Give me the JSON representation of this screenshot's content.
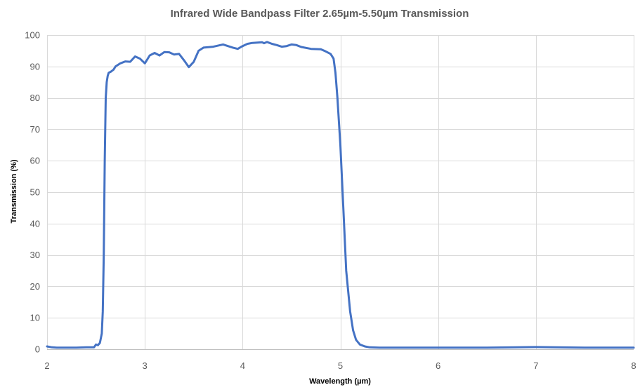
{
  "chart_data": {
    "type": "line",
    "title": "Infrared Wide Bandpass Filter 2.65µm-5.50µm Transmission",
    "xlabel": "Wavelength (µm)",
    "ylabel": "Transmission (%)",
    "xlim": [
      2,
      8
    ],
    "ylim": [
      0,
      100
    ],
    "xticks": [
      2,
      3,
      4,
      5,
      6,
      7,
      8
    ],
    "yticks": [
      0,
      10,
      20,
      30,
      40,
      50,
      60,
      70,
      80,
      90,
      100
    ],
    "grid": true,
    "legend": "none",
    "series": [
      {
        "color": "#4472c4",
        "x": [
          2.0,
          2.05,
          2.1,
          2.2,
          2.3,
          2.4,
          2.48,
          2.5,
          2.52,
          2.54,
          2.56,
          2.57,
          2.58,
          2.59,
          2.6,
          2.61,
          2.62,
          2.63,
          2.65,
          2.68,
          2.7,
          2.75,
          2.8,
          2.85,
          2.9,
          2.95,
          3.0,
          3.05,
          3.1,
          3.15,
          3.2,
          3.25,
          3.3,
          3.35,
          3.4,
          3.45,
          3.5,
          3.55,
          3.6,
          3.7,
          3.8,
          3.9,
          3.95,
          4.0,
          4.05,
          4.1,
          4.15,
          4.2,
          4.22,
          4.25,
          4.3,
          4.35,
          4.4,
          4.45,
          4.5,
          4.55,
          4.6,
          4.7,
          4.8,
          4.85,
          4.9,
          4.93,
          4.95,
          4.97,
          5.0,
          5.03,
          5.06,
          5.1,
          5.13,
          5.16,
          5.2,
          5.25,
          5.3,
          5.4,
          5.5,
          5.7,
          6.0,
          6.3,
          6.5,
          6.8,
          7.0,
          7.2,
          7.5,
          7.8,
          8.0
        ],
        "y": [
          0.9,
          0.6,
          0.5,
          0.5,
          0.5,
          0.6,
          0.6,
          1.5,
          1.3,
          2.0,
          5.0,
          12.0,
          30.0,
          60.0,
          80.0,
          85.0,
          87.0,
          88.0,
          88.3,
          89.0,
          90.0,
          91.0,
          91.6,
          91.5,
          93.2,
          92.5,
          91.0,
          93.5,
          94.3,
          93.5,
          94.6,
          94.5,
          93.8,
          94.0,
          92.0,
          89.8,
          91.5,
          95.0,
          96.0,
          96.3,
          97.0,
          96.0,
          95.6,
          96.5,
          97.2,
          97.5,
          97.6,
          97.7,
          97.4,
          97.8,
          97.2,
          96.8,
          96.3,
          96.5,
          97.0,
          96.8,
          96.2,
          95.6,
          95.5,
          94.8,
          94.0,
          92.5,
          88.0,
          80.0,
          65.0,
          45.0,
          25.0,
          12.0,
          6.0,
          3.0,
          1.5,
          0.9,
          0.6,
          0.5,
          0.5,
          0.5,
          0.5,
          0.5,
          0.5,
          0.6,
          0.7,
          0.6,
          0.5,
          0.5,
          0.5
        ]
      }
    ]
  }
}
